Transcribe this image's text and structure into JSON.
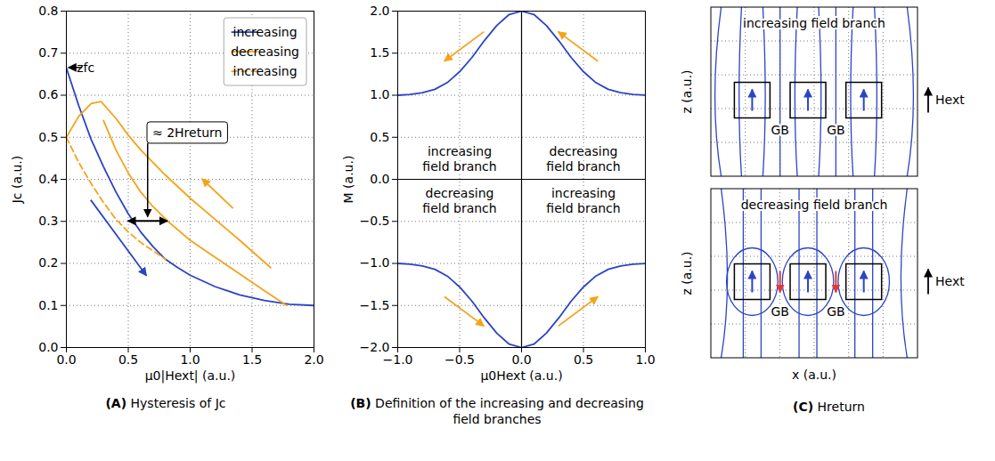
{
  "chart_data": [
    {
      "type": "line",
      "panel_label": "(A)",
      "caption": "Hysteresis of Jc",
      "xlabel": "μ0|Hext| (a.u.)",
      "ylabel": "Jc (a.u.)",
      "xlim": [
        0,
        2
      ],
      "ylim": [
        0,
        0.8
      ],
      "xticks": [
        {
          "value": 0,
          "label": "0.0"
        },
        0.5,
        {
          "value": 1,
          "label": "1.0"
        },
        1.5,
        {
          "value": 2,
          "label": "2.0"
        }
      ],
      "yticks": [
        {
          "value": 0,
          "label": "0.0"
        },
        0.1,
        0.2,
        0.3,
        0.4,
        0.5,
        0.6,
        0.7,
        0.8
      ],
      "grid": true,
      "legend": "upper right",
      "series": [
        {
          "name": "increasing",
          "color": "#2b44c4",
          "line_style": "solid",
          "x": [
            0,
            0.1,
            0.2,
            0.3,
            0.4,
            0.5,
            0.6,
            0.7,
            0.8,
            0.9,
            1.0,
            1.2,
            1.4,
            1.6,
            1.8,
            2.0
          ],
          "values": [
            0.665,
            0.575,
            0.495,
            0.43,
            0.37,
            0.318,
            0.275,
            0.24,
            0.21,
            0.19,
            0.172,
            0.145,
            0.125,
            0.112,
            0.103,
            0.1
          ]
        },
        {
          "name": "decreasing",
          "color": "#f5a31a",
          "line_style": "solid",
          "x": [
            1.78,
            1.6,
            1.4,
            1.2,
            1.0,
            0.82,
            0.7,
            0.6,
            0.5,
            0.4,
            0.3,
            null,
            1.65,
            1.4,
            1.2,
            1.0,
            0.8,
            0.6,
            0.5,
            0.4,
            0.28,
            0.2,
            0.1,
            0
          ],
          "values": [
            0.1,
            0.135,
            0.175,
            0.215,
            0.255,
            0.3,
            0.335,
            0.37,
            0.415,
            0.47,
            0.54,
            null,
            0.19,
            0.255,
            0.305,
            0.355,
            0.41,
            0.47,
            0.505,
            0.545,
            0.585,
            0.58,
            0.55,
            0.5
          ]
        },
        {
          "name": "increasing",
          "color": "#f5a31a",
          "line_style": "dashed",
          "x": [
            0,
            0.1,
            0.2,
            0.3,
            0.4,
            0.5,
            0.6,
            0.7,
            0.8
          ],
          "values": [
            0.5,
            0.44,
            0.39,
            0.345,
            0.305,
            0.275,
            0.25,
            0.23,
            0.21
          ]
        }
      ],
      "annotations": [
        {
          "text": "zfc",
          "x": 0.16,
          "y": 0.665,
          "arrow_to": [
            0.02,
            0.665
          ]
        },
        {
          "text": "≈ 2Hreturn",
          "x": 0.98,
          "y": 0.51,
          "arrow_to": [
            0.66,
            0.31
          ]
        }
      ],
      "arrows": [
        {
          "from": [
            0.5,
            0.3
          ],
          "to": [
            0.82,
            0.3
          ],
          "color": "#000000",
          "marker": "double"
        },
        {
          "from": [
            0.2,
            0.35
          ],
          "to": [
            0.65,
            0.17
          ],
          "color": "#2b44c4"
        },
        {
          "from": [
            1.35,
            0.33
          ],
          "to": [
            1.1,
            0.4
          ],
          "color": "#f5a31a"
        }
      ]
    },
    {
      "type": "line",
      "panel_label": "(B)",
      "caption": "Definition of the increasing and decreasing field branches",
      "xlabel": "μ0Hext (a.u.)",
      "ylabel": "M (a.u.)",
      "xlim": [
        -1,
        1
      ],
      "ylim": [
        -2,
        2
      ],
      "xticks": [
        {
          "value": -1,
          "label": "−1.0"
        },
        {
          "value": -0.5,
          "label": "−0.5"
        },
        {
          "value": 0,
          "label": "0.0"
        },
        0.5,
        {
          "value": 1,
          "label": "1.0"
        }
      ],
      "yticks": [
        {
          "value": -2,
          "label": "−2.0"
        },
        {
          "value": -1.5,
          "label": "−1.5"
        },
        {
          "value": -1,
          "label": "−1.0"
        },
        {
          "value": -0.5,
          "label": "−0.5"
        },
        {
          "value": 0,
          "label": "0.0"
        },
        0.5,
        {
          "value": 1,
          "label": "1.0"
        },
        1.5,
        {
          "value": 2,
          "label": "2.0"
        }
      ],
      "grid": true,
      "series": [
        {
          "color": "#2b44c4",
          "line_style": "solid",
          "x": [
            -1,
            -0.9,
            -0.8,
            -0.7,
            -0.6,
            -0.5,
            -0.4,
            -0.3,
            -0.2,
            -0.1,
            0,
            0.1,
            0.2,
            0.3,
            0.4,
            0.5,
            0.6,
            0.7,
            0.8,
            0.9,
            1
          ],
          "values": [
            1.0,
            1.01,
            1.03,
            1.07,
            1.15,
            1.28,
            1.45,
            1.65,
            1.83,
            1.96,
            2.0,
            1.96,
            1.83,
            1.65,
            1.45,
            1.28,
            1.15,
            1.07,
            1.03,
            1.01,
            1.0
          ]
        },
        {
          "color": "#2b44c4",
          "line_style": "solid",
          "x": [
            -1,
            -0.9,
            -0.8,
            -0.7,
            -0.6,
            -0.5,
            -0.4,
            -0.3,
            -0.2,
            -0.1,
            0,
            0.1,
            0.2,
            0.3,
            0.4,
            0.5,
            0.6,
            0.7,
            0.8,
            0.9,
            1
          ],
          "values": [
            -1.0,
            -1.01,
            -1.03,
            -1.07,
            -1.15,
            -1.28,
            -1.45,
            -1.65,
            -1.83,
            -1.96,
            -2.0,
            -1.96,
            -1.83,
            -1.65,
            -1.45,
            -1.28,
            -1.15,
            -1.07,
            -1.03,
            -1.01,
            -1.0
          ]
        }
      ],
      "region_labels": [
        {
          "text": "increasing field branch",
          "x": -0.5,
          "y": 0.25
        },
        {
          "text": "decreasing field branch",
          "x": 0.5,
          "y": 0.25
        },
        {
          "text": "decreasing field branch",
          "x": -0.5,
          "y": -0.25
        },
        {
          "text": "increasing field branch",
          "x": 0.5,
          "y": -0.25
        }
      ],
      "arrows": [
        {
          "from": [
            -0.3,
            1.75
          ],
          "to": [
            -0.62,
            1.4
          ],
          "color": "#f5a31a"
        },
        {
          "from": [
            0.62,
            1.4
          ],
          "to": [
            0.3,
            1.75
          ],
          "color": "#f5a31a"
        },
        {
          "from": [
            -0.62,
            -1.4
          ],
          "to": [
            -0.3,
            -1.75
          ],
          "color": "#f5a31a"
        },
        {
          "from": [
            0.3,
            -1.75
          ],
          "to": [
            0.62,
            -1.4
          ],
          "color": "#f5a31a"
        }
      ]
    },
    {
      "type": "diagram",
      "panel_label": "(C)",
      "caption": "Hreturn",
      "xlabel": "x (a.u.)",
      "tick_labels": false,
      "grid": true,
      "panels": [
        {
          "title": "increasing field branch",
          "ylabel": "z (a.u.)",
          "gb_labels": [
            "GB",
            "GB"
          ],
          "field_label": "Hext"
        },
        {
          "title": "decreasing field branch",
          "ylabel": "z (a.u.)",
          "gb_labels": [
            "GB",
            "GB"
          ],
          "field_label": "Hext"
        }
      ]
    }
  ]
}
